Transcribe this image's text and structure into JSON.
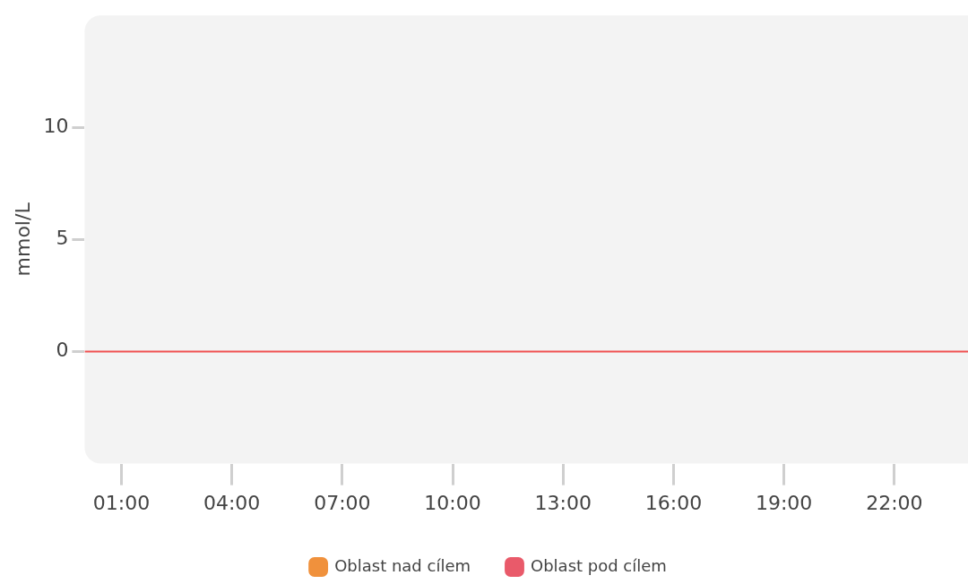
{
  "chart_data": {
    "type": "line",
    "ylabel": "mmol/L",
    "xlim": [
      0,
      24
    ],
    "ylim": [
      -5,
      15
    ],
    "xticks": [
      {
        "value": 1,
        "label": "01:00"
      },
      {
        "value": 4,
        "label": "04:00"
      },
      {
        "value": 7,
        "label": "07:00"
      },
      {
        "value": 10,
        "label": "10:00"
      },
      {
        "value": 13,
        "label": "13:00"
      },
      {
        "value": 16,
        "label": "16:00"
      },
      {
        "value": 19,
        "label": "19:00"
      },
      {
        "value": 22,
        "label": "22:00"
      }
    ],
    "yticks": [
      0,
      5,
      10
    ],
    "series": [
      {
        "type": "line",
        "color": "#f05050",
        "x": [
          0,
          24
        ],
        "values": [
          0,
          0
        ]
      },
      {
        "name": "Oblast nad cílem",
        "color": "#f0913c"
      },
      {
        "name": "Oblast pod cílem",
        "color": "#e95a6a"
      }
    ],
    "grid": false,
    "legend": "bottom"
  }
}
